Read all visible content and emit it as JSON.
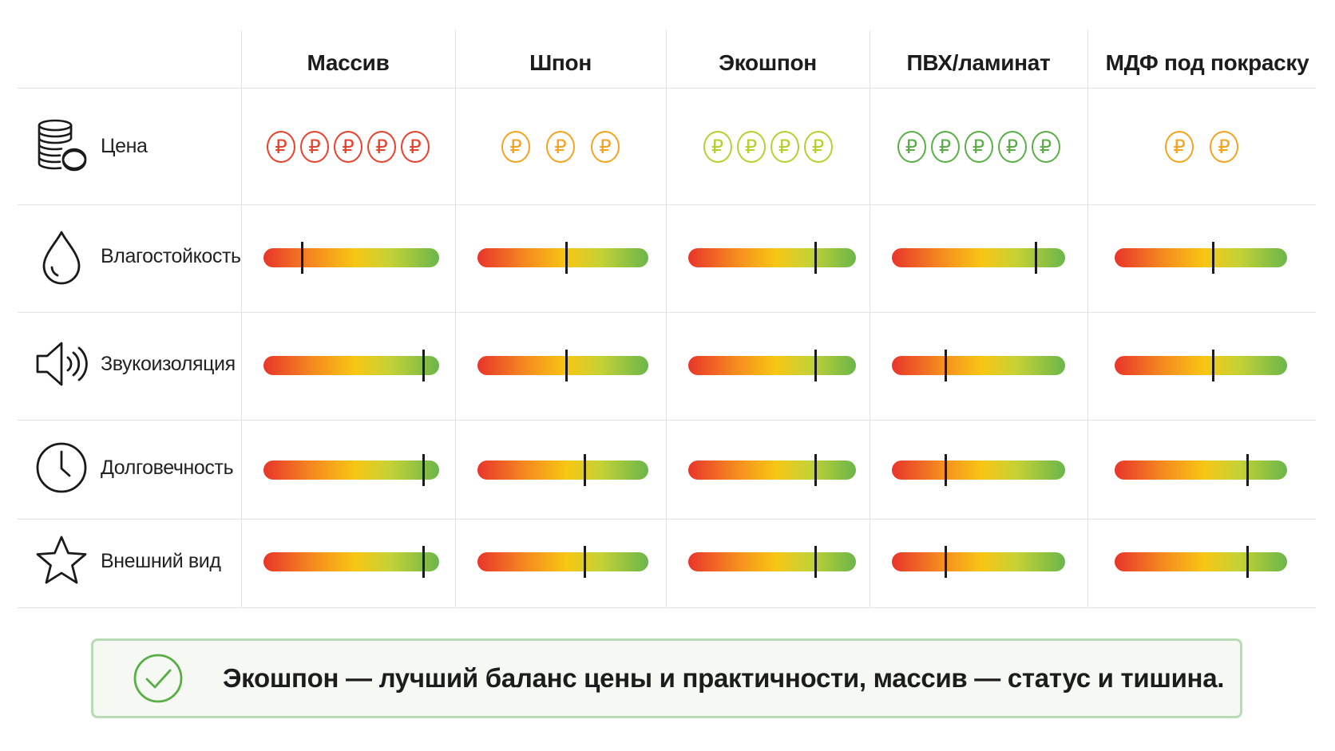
{
  "columns": [
    {
      "id": "massiv",
      "label": "Массив"
    },
    {
      "id": "shpon",
      "label": "Шпон"
    },
    {
      "id": "ekoshpon",
      "label": "Экошпон"
    },
    {
      "id": "pvh",
      "label": "ПВХ/ламинат"
    },
    {
      "id": "mdf",
      "label": "МДФ под покраску"
    }
  ],
  "price_row": {
    "label": "Цена",
    "icon": "coins-stack-icon",
    "symbol": "₽",
    "counts": [
      5,
      3,
      4,
      5,
      2
    ],
    "colors": [
      "#e8402a",
      "#f5a21f",
      "#b7cf2e",
      "#5aae46",
      "#f5a21f"
    ]
  },
  "scale_rows": [
    {
      "label": "Влагостойкость",
      "icon": "water-drop-icon",
      "levels": [
        0.22,
        0.52,
        0.76,
        0.83,
        0.57
      ]
    },
    {
      "label": "Звукоизоляция",
      "icon": "speaker-icon",
      "levels": [
        0.91,
        0.52,
        0.76,
        0.31,
        0.57
      ]
    },
    {
      "label": "Долговечность",
      "icon": "clock-icon",
      "levels": [
        0.91,
        0.63,
        0.76,
        0.31,
        0.77
      ]
    },
    {
      "label": "Внешний вид",
      "icon": "star-icon",
      "levels": [
        0.91,
        0.63,
        0.76,
        0.31,
        0.77
      ]
    }
  ],
  "conclusion": {
    "icon": "checkmark-circle-icon",
    "text": "Экошпон — лучший баланс цены и практичности, массив — статус и тишина.",
    "border_color": "#b9dbb3",
    "icon_color": "#5aae46"
  }
}
